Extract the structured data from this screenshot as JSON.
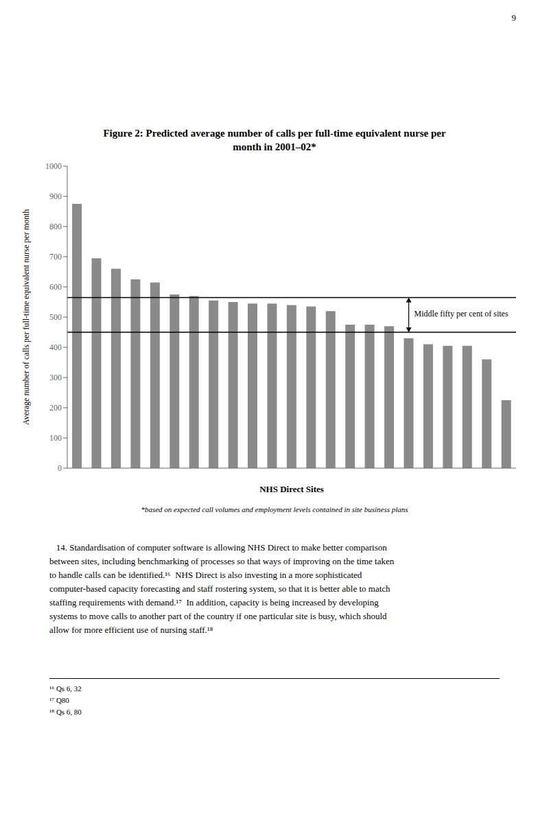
{
  "chart_data": {
    "type": "bar",
    "title": "Figure 2: Predicted average number of calls per full-time equivalent nurse per\nmonth in 2001–02*",
    "categories": [
      null,
      null,
      null,
      null,
      null,
      null,
      null,
      null,
      null,
      null,
      null,
      null,
      null,
      null,
      null,
      null,
      null,
      null,
      null,
      null,
      null,
      null,
      null
    ],
    "values": [
      875,
      695,
      660,
      625,
      615,
      575,
      570,
      555,
      550,
      545,
      545,
      540,
      535,
      520,
      475,
      475,
      470,
      430,
      410,
      405,
      405,
      360,
      225
    ],
    "color": "#8a8a8a",
    "xlabel": "NHS Direct Sites",
    "ylabel": "Average number of calls per full-time equivalent nurse per month",
    "ylim": [
      0,
      1000
    ],
    "yticks": [
      0,
      100,
      200,
      300,
      400,
      500,
      600,
      700,
      800,
      900,
      1000
    ],
    "grid": false,
    "tick_labels": "y",
    "reference_lines": [
      {
        "value": 565,
        "color": "#000000"
      },
      {
        "value": 450,
        "color": "#000000"
      }
    ],
    "annotation": "Middle fifty per cent of sites",
    "footnote": "*based on expected call volumes and employment levels contained in site business plans",
    "body_text": "   14. Standardisation of computer software is allowing NHS Direct to make better comparison\nbetween sites, including benchmarking of processes so that ways of improving on the time taken\nto handle calls can be identified.¹⁶  NHS Direct is also investing in a more sophisticated\ncomputer-based capacity forecasting and staff rostering system, so that it is better able to match\nstaffing requirements with demand.¹⁷  In addition, capacity is being increased by developing\nsystems to move calls to another part of the country if one particular site is busy, which should\nallow for more efficient use of nursing staff.¹⁸",
    "footnotes": [
      "¹⁶ Qs 6, 32",
      "¹⁷ Q80",
      "¹⁸ Qs 6, 80"
    ],
    "page_number": "9"
  }
}
